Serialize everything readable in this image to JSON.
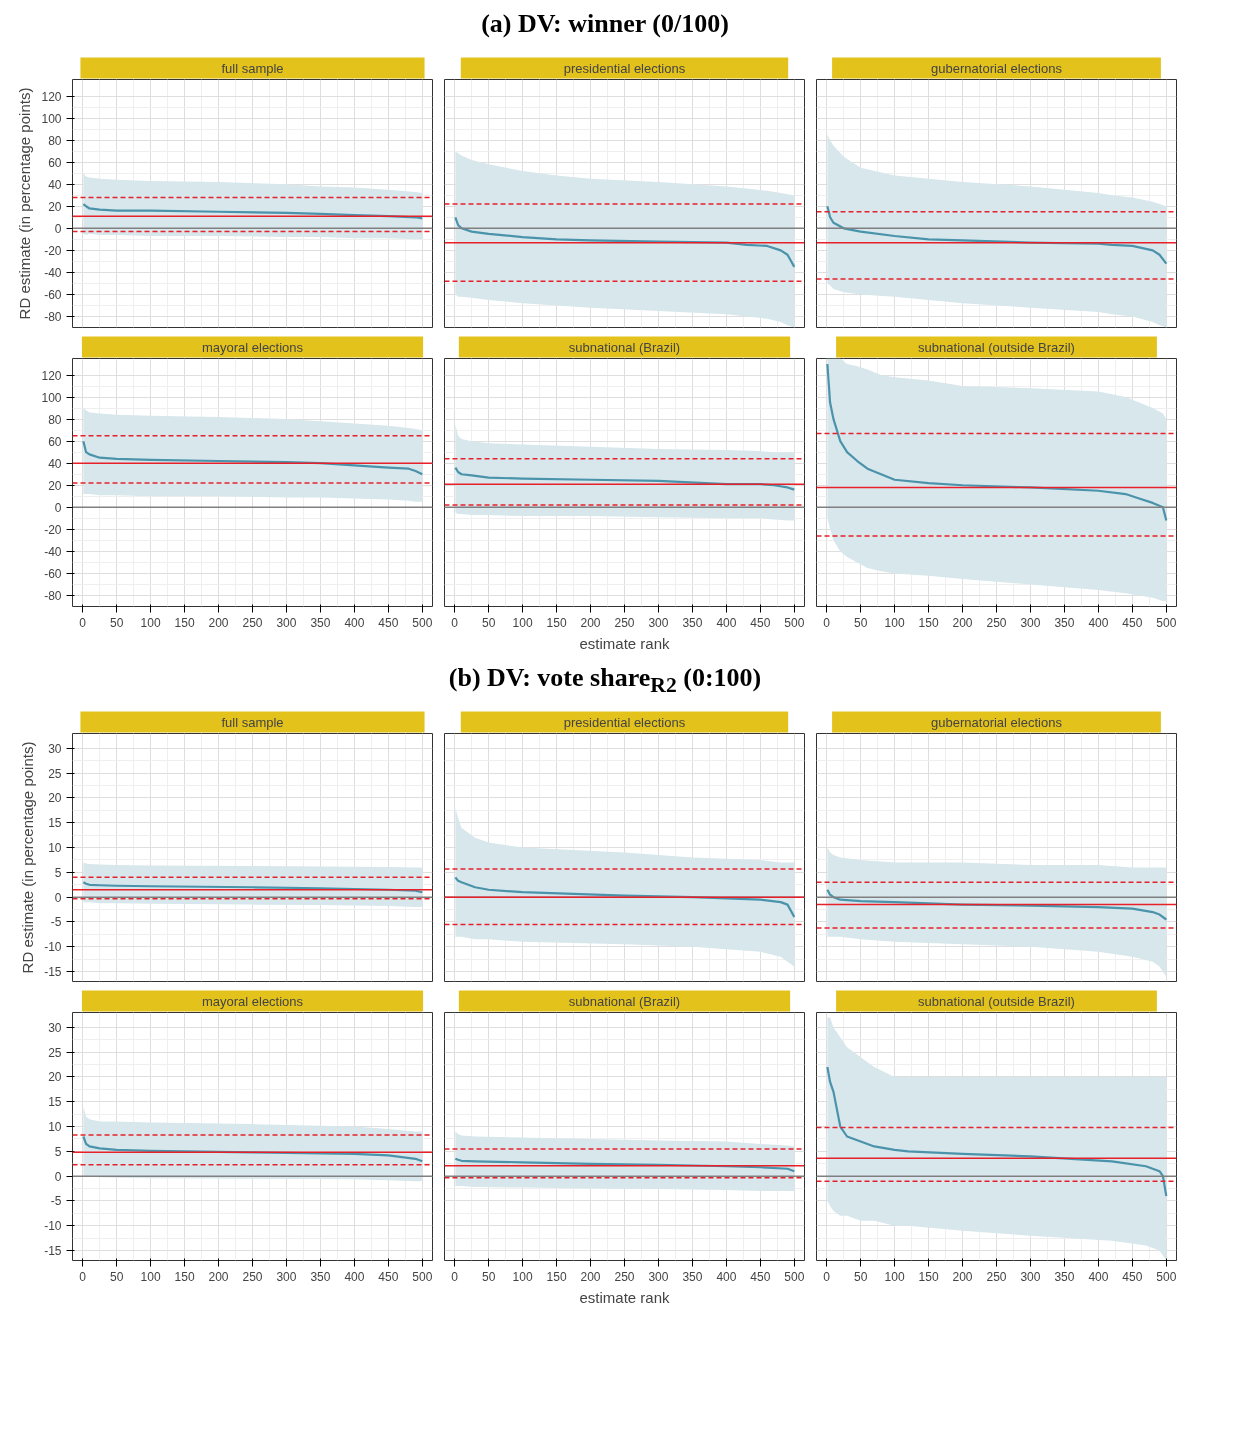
{
  "chart_data": [
    {
      "type": "line",
      "title": "full sample",
      "annotations": [
        "(a) DV: winner (0/100)"
      ],
      "ylabel": "RD estimate (in percentage points)",
      "tick_labels": "y",
      "grid": true,
      "line_style": "solid",
      "xlim": [
        -15,
        515
      ],
      "ylim": [
        -90,
        135
      ],
      "xticks": [
        0,
        50,
        100,
        150,
        200,
        250,
        300,
        350,
        400,
        450,
        500
      ],
      "yticks": [
        -80,
        -60,
        -40,
        -20,
        0,
        20,
        40,
        60,
        80,
        100,
        120
      ],
      "series": [
        {
          "color": "#4a93ab",
          "x": [
            1,
            5,
            10,
            25,
            50,
            100,
            200,
            300,
            350,
            400,
            450,
            490,
            500
          ],
          "values": [
            22,
            20,
            18,
            17,
            16,
            16,
            15,
            14,
            13,
            12,
            11,
            10,
            9
          ],
          "lower": [
            -5,
            -6,
            -5,
            -6,
            -6,
            -7,
            -7,
            -8,
            -8,
            -9,
            -9,
            -10,
            -10
          ],
          "upper": [
            50,
            47,
            46,
            45,
            44,
            43,
            42,
            40,
            38,
            37,
            35,
            33,
            32
          ]
        }
      ],
      "ref_lines": [
        {
          "axis": "y",
          "value": 0,
          "color": "#808080",
          "line_style": "solid"
        },
        {
          "axis": "y",
          "value": 11,
          "color": "#e8202a",
          "line_style": "solid"
        },
        {
          "axis": "y",
          "value": 28,
          "color": "#e8202a",
          "line_style": "dashed"
        },
        {
          "axis": "y",
          "value": -3,
          "color": "#e8202a",
          "line_style": "dashed"
        }
      ]
    },
    {
      "type": "line",
      "title": "presidential elections",
      "tick_labels": false,
      "grid": true,
      "line_style": "solid",
      "xlim": [
        -15,
        515
      ],
      "ylim": [
        -90,
        135
      ],
      "xticks": [
        0,
        50,
        100,
        150,
        200,
        250,
        300,
        350,
        400,
        450,
        500
      ],
      "yticks": [
        -80,
        -60,
        -40,
        -20,
        0,
        20,
        40,
        60,
        80,
        100,
        120
      ],
      "series": [
        {
          "color": "#4a93ab",
          "x": [
            1,
            5,
            10,
            25,
            50,
            100,
            150,
            200,
            300,
            400,
            430,
            460,
            480,
            490,
            500
          ],
          "values": [
            10,
            3,
            0,
            -3,
            -5,
            -8,
            -10,
            -11,
            -12,
            -13,
            -15,
            -16,
            -20,
            -24,
            -35
          ],
          "lower": [
            -60,
            -62,
            -62,
            -63,
            -65,
            -68,
            -70,
            -72,
            -75,
            -78,
            -80,
            -82,
            -85,
            -88,
            -90
          ],
          "upper": [
            70,
            68,
            66,
            62,
            58,
            52,
            48,
            45,
            42,
            38,
            36,
            34,
            32,
            31,
            30
          ]
        }
      ],
      "ref_lines": [
        {
          "axis": "y",
          "value": 0,
          "color": "#808080",
          "line_style": "solid"
        },
        {
          "axis": "y",
          "value": -13,
          "color": "#e8202a",
          "line_style": "solid"
        },
        {
          "axis": "y",
          "value": 22,
          "color": "#e8202a",
          "line_style": "dashed"
        },
        {
          "axis": "y",
          "value": -48,
          "color": "#e8202a",
          "line_style": "dashed"
        }
      ]
    },
    {
      "type": "line",
      "title": "gubernatorial elections",
      "tick_labels": false,
      "grid": true,
      "line_style": "solid",
      "xlim": [
        -15,
        515
      ],
      "ylim": [
        -90,
        135
      ],
      "xticks": [
        0,
        50,
        100,
        150,
        200,
        250,
        300,
        350,
        400,
        450,
        500
      ],
      "yticks": [
        -80,
        -60,
        -40,
        -20,
        0,
        20,
        40,
        60,
        80,
        100,
        120
      ],
      "series": [
        {
          "color": "#4a93ab",
          "x": [
            1,
            5,
            10,
            25,
            50,
            100,
            150,
            200,
            300,
            400,
            420,
            450,
            480,
            490,
            500
          ],
          "values": [
            20,
            10,
            5,
            0,
            -3,
            -7,
            -10,
            -11,
            -13,
            -14,
            -15,
            -16,
            -20,
            -24,
            -32
          ],
          "lower": [
            -50,
            -52,
            -55,
            -58,
            -60,
            -62,
            -65,
            -68,
            -72,
            -76,
            -78,
            -80,
            -85,
            -88,
            -90
          ],
          "upper": [
            85,
            80,
            75,
            65,
            55,
            48,
            45,
            42,
            38,
            32,
            30,
            28,
            24,
            22,
            20
          ]
        }
      ],
      "ref_lines": [
        {
          "axis": "y",
          "value": 0,
          "color": "#808080",
          "line_style": "solid"
        },
        {
          "axis": "y",
          "value": -13,
          "color": "#e8202a",
          "line_style": "solid"
        },
        {
          "axis": "y",
          "value": 15,
          "color": "#e8202a",
          "line_style": "dashed"
        },
        {
          "axis": "y",
          "value": -46,
          "color": "#e8202a",
          "line_style": "dashed"
        }
      ]
    },
    {
      "type": "line",
      "title": "mayoral elections",
      "grid": true,
      "line_style": "solid",
      "xlim": [
        -15,
        515
      ],
      "ylim": [
        -90,
        135
      ],
      "xticks": [
        0,
        50,
        100,
        150,
        200,
        250,
        300,
        350,
        400,
        450,
        500
      ],
      "yticks": [
        -80,
        -60,
        -40,
        -20,
        0,
        20,
        40,
        60,
        80,
        100,
        120
      ],
      "series": [
        {
          "color": "#4a93ab",
          "x": [
            1,
            5,
            10,
            25,
            50,
            100,
            200,
            300,
            350,
            400,
            450,
            480,
            490,
            500
          ],
          "values": [
            60,
            50,
            48,
            45,
            44,
            43,
            42,
            41,
            40,
            38,
            36,
            35,
            33,
            30
          ],
          "lower": [
            12,
            12,
            12,
            11,
            11,
            10,
            10,
            9,
            9,
            8,
            7,
            6,
            5,
            5
          ],
          "upper": [
            90,
            88,
            86,
            85,
            84,
            83,
            82,
            80,
            78,
            76,
            74,
            72,
            71,
            70
          ]
        }
      ],
      "ref_lines": [
        {
          "axis": "y",
          "value": 0,
          "color": "#808080",
          "line_style": "solid"
        },
        {
          "axis": "y",
          "value": 40,
          "color": "#e8202a",
          "line_style": "solid"
        },
        {
          "axis": "y",
          "value": 65,
          "color": "#e8202a",
          "line_style": "dashed"
        },
        {
          "axis": "y",
          "value": 22,
          "color": "#e8202a",
          "line_style": "dashed"
        }
      ]
    },
    {
      "type": "line",
      "title": "subnational (Brazil)",
      "xlabel": "estimate rank",
      "tick_labels": "x",
      "grid": true,
      "line_style": "solid",
      "xlim": [
        -15,
        515
      ],
      "ylim": [
        -90,
        135
      ],
      "xticks": [
        0,
        50,
        100,
        150,
        200,
        250,
        300,
        350,
        400,
        450,
        500
      ],
      "yticks": [
        -80,
        -60,
        -40,
        -20,
        0,
        20,
        40,
        60,
        80,
        100,
        120
      ],
      "series": [
        {
          "color": "#4a93ab",
          "x": [
            1,
            5,
            10,
            25,
            50,
            100,
            200,
            300,
            400,
            450,
            470,
            490,
            500
          ],
          "values": [
            36,
            32,
            30,
            29,
            27,
            26,
            25,
            24,
            21,
            21,
            20,
            18,
            16
          ],
          "lower": [
            -5,
            -6,
            -6,
            -7,
            -7,
            -8,
            -8,
            -9,
            -10,
            -10,
            -11,
            -12,
            -12
          ],
          "upper": [
            75,
            65,
            62,
            60,
            58,
            57,
            55,
            53,
            52,
            51,
            50,
            50,
            50
          ]
        }
      ],
      "ref_lines": [
        {
          "axis": "y",
          "value": 0,
          "color": "#808080",
          "line_style": "solid"
        },
        {
          "axis": "y",
          "value": 21,
          "color": "#e8202a",
          "line_style": "solid"
        },
        {
          "axis": "y",
          "value": 44,
          "color": "#e8202a",
          "line_style": "dashed"
        },
        {
          "axis": "y",
          "value": 2,
          "color": "#e8202a",
          "line_style": "dashed"
        }
      ]
    },
    {
      "type": "line",
      "title": "subnational (outside Brazil)",
      "tick_labels": "x",
      "grid": true,
      "line_style": "solid",
      "xlim": [
        -15,
        515
      ],
      "ylim": [
        -90,
        135
      ],
      "xticks": [
        0,
        50,
        100,
        150,
        200,
        250,
        300,
        350,
        400,
        450,
        500
      ],
      "yticks": [
        -80,
        -60,
        -40,
        -20,
        0,
        20,
        40,
        60,
        80,
        100,
        120
      ],
      "series": [
        {
          "color": "#4a93ab",
          "x": [
            1,
            5,
            10,
            20,
            30,
            45,
            60,
            80,
            100,
            150,
            200,
            300,
            400,
            440,
            460,
            480,
            495,
            500
          ],
          "values": [
            130,
            95,
            80,
            60,
            50,
            42,
            35,
            30,
            25,
            22,
            20,
            18,
            15,
            12,
            8,
            4,
            0,
            -12
          ],
          "lower": [
            -10,
            -20,
            -30,
            -40,
            -45,
            -50,
            -55,
            -58,
            -60,
            -62,
            -65,
            -70,
            -75,
            -78,
            -80,
            -82,
            -85,
            -85
          ],
          "upper": [
            135,
            135,
            135,
            135,
            130,
            128,
            125,
            120,
            118,
            115,
            110,
            108,
            105,
            100,
            95,
            90,
            85,
            80
          ]
        }
      ],
      "ref_lines": [
        {
          "axis": "y",
          "value": 0,
          "color": "#808080",
          "line_style": "solid"
        },
        {
          "axis": "y",
          "value": 18,
          "color": "#e8202a",
          "line_style": "solid"
        },
        {
          "axis": "y",
          "value": 67,
          "color": "#e8202a",
          "line_style": "dashed"
        },
        {
          "axis": "y",
          "value": -26,
          "color": "#e8202a",
          "line_style": "dashed"
        }
      ]
    },
    {
      "type": "line",
      "title": "full sample",
      "annotations": [
        "(b) DV: vote share$_{R2}$ (0:100)"
      ],
      "ylabel": "RD estimate (in percentage points)",
      "tick_labels": "y",
      "grid": true,
      "line_style": "solid",
      "xlim": [
        -15,
        515
      ],
      "ylim": [
        -17,
        33
      ],
      "xticks": [
        0,
        50,
        100,
        150,
        200,
        250,
        300,
        350,
        400,
        450,
        500
      ],
      "yticks": [
        -15,
        -10,
        -5,
        0,
        5,
        10,
        15,
        20,
        25,
        30
      ],
      "series": [
        {
          "color": "#4a93ab",
          "x": [
            1,
            5,
            10,
            25,
            50,
            100,
            250,
            350,
            450,
            490,
            500
          ],
          "values": [
            3,
            2.7,
            2.5,
            2.4,
            2.3,
            2.2,
            2,
            1.8,
            1.5,
            1.3,
            1
          ],
          "lower": [
            -1,
            -1,
            -1,
            -1.2,
            -1.2,
            -1.3,
            -1.5,
            -1.6,
            -1.8,
            -2,
            -2
          ],
          "upper": [
            7,
            6.8,
            6.7,
            6.6,
            6.5,
            6.4,
            6.3,
            6.2,
            6.1,
            6,
            6
          ]
        }
      ],
      "ref_lines": [
        {
          "axis": "y",
          "value": 0,
          "color": "#808080",
          "line_style": "solid"
        },
        {
          "axis": "y",
          "value": 1.5,
          "color": "#e8202a",
          "line_style": "solid"
        },
        {
          "axis": "y",
          "value": 4,
          "color": "#e8202a",
          "line_style": "dashed"
        },
        {
          "axis": "y",
          "value": -0.3,
          "color": "#e8202a",
          "line_style": "dashed"
        }
      ]
    },
    {
      "type": "line",
      "title": "presidential elections",
      "tick_labels": false,
      "grid": true,
      "line_style": "solid",
      "xlim": [
        -15,
        515
      ],
      "ylim": [
        -17,
        33
      ],
      "xticks": [
        0,
        50,
        100,
        150,
        200,
        250,
        300,
        350,
        400,
        450,
        500
      ],
      "yticks": [
        -15,
        -10,
        -5,
        0,
        5,
        10,
        15,
        20,
        25,
        30
      ],
      "series": [
        {
          "color": "#4a93ab",
          "x": [
            1,
            5,
            10,
            30,
            50,
            100,
            250,
            350,
            450,
            480,
            490,
            500
          ],
          "values": [
            4,
            3.3,
            3,
            2,
            1.5,
            1,
            0.3,
            0,
            -0.5,
            -1,
            -1.5,
            -4
          ],
          "lower": [
            -8,
            -8,
            -8,
            -8.5,
            -8.5,
            -9,
            -9.5,
            -10,
            -11,
            -12,
            -13,
            -14
          ],
          "upper": [
            18,
            16,
            14,
            12,
            11,
            10,
            9,
            8,
            7.5,
            7,
            7,
            7
          ]
        }
      ],
      "ref_lines": [
        {
          "axis": "y",
          "value": 0,
          "color": "#808080",
          "line_style": "solid"
        },
        {
          "axis": "y",
          "value": 0,
          "color": "#e8202a",
          "line_style": "solid"
        },
        {
          "axis": "y",
          "value": 5.7,
          "color": "#e8202a",
          "line_style": "dashed"
        },
        {
          "axis": "y",
          "value": -5.5,
          "color": "#e8202a",
          "line_style": "dashed"
        }
      ]
    },
    {
      "type": "line",
      "title": "gubernatorial elections",
      "tick_labels": false,
      "grid": true,
      "line_style": "solid",
      "xlim": [
        -15,
        515
      ],
      "ylim": [
        -17,
        33
      ],
      "xticks": [
        0,
        50,
        100,
        150,
        200,
        250,
        300,
        350,
        400,
        450,
        500
      ],
      "yticks": [
        -15,
        -10,
        -5,
        0,
        5,
        10,
        15,
        20,
        25,
        30
      ],
      "series": [
        {
          "color": "#4a93ab",
          "x": [
            1,
            5,
            10,
            20,
            50,
            100,
            200,
            300,
            400,
            450,
            480,
            490,
            500
          ],
          "values": [
            1.5,
            0.5,
            0,
            -0.5,
            -0.8,
            -1,
            -1.5,
            -1.7,
            -2,
            -2.3,
            -3,
            -3.5,
            -4.5
          ],
          "lower": [
            -8,
            -8,
            -8,
            -8,
            -8.5,
            -9,
            -9.5,
            -10,
            -11,
            -12,
            -13,
            -14,
            -16
          ],
          "upper": [
            10,
            9,
            8.5,
            8,
            7.5,
            7,
            7,
            6.5,
            6.5,
            6,
            6,
            6,
            6
          ]
        }
      ],
      "ref_lines": [
        {
          "axis": "y",
          "value": 0,
          "color": "#808080",
          "line_style": "solid"
        },
        {
          "axis": "y",
          "value": -1.5,
          "color": "#e8202a",
          "line_style": "solid"
        },
        {
          "axis": "y",
          "value": 3,
          "color": "#e8202a",
          "line_style": "dashed"
        },
        {
          "axis": "y",
          "value": -6.2,
          "color": "#e8202a",
          "line_style": "dashed"
        }
      ]
    },
    {
      "type": "line",
      "title": "mayoral elections",
      "grid": true,
      "line_style": "solid",
      "xlim": [
        -15,
        515
      ],
      "ylim": [
        -17,
        33
      ],
      "xticks": [
        0,
        50,
        100,
        150,
        200,
        250,
        300,
        350,
        400,
        450,
        500
      ],
      "yticks": [
        -15,
        -10,
        -5,
        0,
        5,
        10,
        15,
        20,
        25,
        30
      ],
      "series": [
        {
          "color": "#4a93ab",
          "x": [
            1,
            5,
            10,
            25,
            50,
            100,
            250,
            400,
            450,
            490,
            500
          ],
          "values": [
            8,
            6.5,
            6,
            5.6,
            5.3,
            5.1,
            4.8,
            4.5,
            4.2,
            3.5,
            3
          ],
          "lower": [
            0,
            0,
            0,
            -0.2,
            -0.3,
            -0.4,
            -0.5,
            -0.6,
            -0.8,
            -1,
            -1
          ],
          "upper": [
            14,
            12,
            11.5,
            11,
            11,
            10.8,
            10.5,
            10,
            9.5,
            9,
            9
          ]
        }
      ],
      "ref_lines": [
        {
          "axis": "y",
          "value": 0,
          "color": "#808080",
          "line_style": "solid"
        },
        {
          "axis": "y",
          "value": 4.8,
          "color": "#e8202a",
          "line_style": "solid"
        },
        {
          "axis": "y",
          "value": 8.3,
          "color": "#e8202a",
          "line_style": "dashed"
        },
        {
          "axis": "y",
          "value": 2.3,
          "color": "#e8202a",
          "line_style": "dashed"
        }
      ]
    },
    {
      "type": "line",
      "title": "subnational (Brazil)",
      "xlabel": "estimate rank",
      "tick_labels": "x",
      "grid": true,
      "line_style": "solid",
      "xlim": [
        -15,
        515
      ],
      "ylim": [
        -17,
        33
      ],
      "xticks": [
        0,
        50,
        100,
        150,
        200,
        250,
        300,
        350,
        400,
        450,
        500
      ],
      "yticks": [
        -15,
        -10,
        -5,
        0,
        5,
        10,
        15,
        20,
        25,
        30
      ],
      "series": [
        {
          "color": "#4a93ab",
          "x": [
            1,
            5,
            10,
            30,
            100,
            200,
            300,
            400,
            450,
            490,
            500
          ],
          "values": [
            3.5,
            3.3,
            3.1,
            3,
            2.8,
            2.5,
            2.3,
            2,
            1.8,
            1.5,
            1
          ],
          "lower": [
            -2,
            -2,
            -2,
            -2.2,
            -2.3,
            -2.5,
            -2.6,
            -2.8,
            -3,
            -3,
            -3
          ],
          "upper": [
            9,
            8.5,
            8.2,
            8,
            7.8,
            7.5,
            7.2,
            7,
            6.5,
            6.2,
            6
          ]
        }
      ],
      "ref_lines": [
        {
          "axis": "y",
          "value": 0,
          "color": "#808080",
          "line_style": "solid"
        },
        {
          "axis": "y",
          "value": 2.1,
          "color": "#e8202a",
          "line_style": "solid"
        },
        {
          "axis": "y",
          "value": 5.5,
          "color": "#e8202a",
          "line_style": "dashed"
        },
        {
          "axis": "y",
          "value": -0.3,
          "color": "#e8202a",
          "line_style": "dashed"
        }
      ]
    },
    {
      "type": "line",
      "title": "subnational (outside Brazil)",
      "tick_labels": "x",
      "grid": true,
      "line_style": "solid",
      "xlim": [
        -15,
        515
      ],
      "ylim": [
        -17,
        33
      ],
      "xticks": [
        0,
        50,
        100,
        150,
        200,
        250,
        300,
        350,
        400,
        450,
        500
      ],
      "yticks": [
        -15,
        -10,
        -5,
        0,
        5,
        10,
        15,
        20,
        25,
        30
      ],
      "series": [
        {
          "color": "#4a93ab",
          "x": [
            1,
            5,
            10,
            20,
            30,
            50,
            70,
            100,
            120,
            200,
            300,
            420,
            470,
            490,
            495,
            500
          ],
          "values": [
            22,
            19,
            17,
            10,
            8,
            7,
            6,
            5.3,
            5,
            4.5,
            4,
            3,
            2,
            1,
            0,
            -4
          ],
          "lower": [
            -5,
            -6,
            -7,
            -8,
            -8,
            -9,
            -9,
            -10,
            -10,
            -11,
            -12,
            -13,
            -14,
            -15,
            -16,
            -17
          ],
          "upper": [
            32,
            32,
            30,
            28,
            26,
            24,
            22,
            20,
            20,
            20,
            20,
            20,
            20,
            20,
            20,
            20
          ]
        }
      ],
      "ref_lines": [
        {
          "axis": "y",
          "value": 0,
          "color": "#808080",
          "line_style": "solid"
        },
        {
          "axis": "y",
          "value": 3.6,
          "color": "#e8202a",
          "line_style": "solid"
        },
        {
          "axis": "y",
          "value": 9.8,
          "color": "#e8202a",
          "line_style": "dashed"
        },
        {
          "axis": "y",
          "value": -1,
          "color": "#e8202a",
          "line_style": "dashed"
        }
      ]
    }
  ]
}
